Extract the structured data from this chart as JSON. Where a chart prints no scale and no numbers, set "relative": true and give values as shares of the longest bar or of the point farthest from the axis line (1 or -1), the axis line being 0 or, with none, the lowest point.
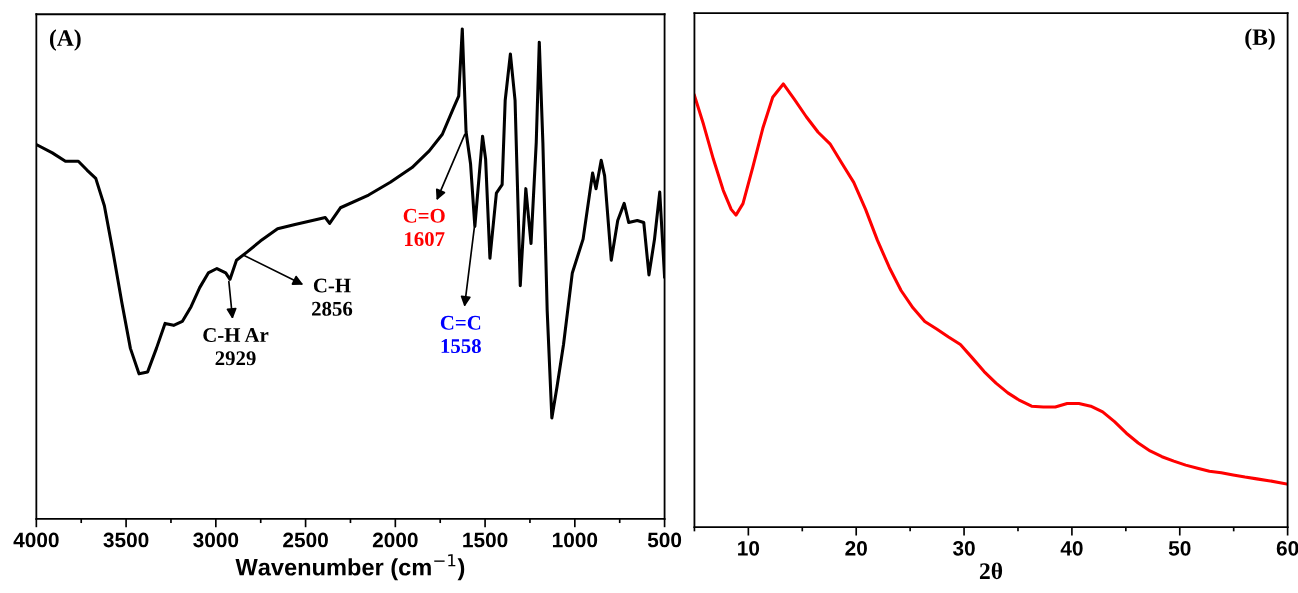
{
  "chart_data": [
    {
      "type": "line",
      "title": "(A)",
      "xlabel": "Wavenumber (cm$^{−1}$)",
      "relative": true,
      "tick_labels": "x",
      "xlim": [
        4000,
        500
      ],
      "xticks": [
        4000,
        {
          "value": 3750,
          "label": null
        },
        3500,
        {
          "value": 3250,
          "label": null
        },
        3000,
        {
          "value": 2750,
          "label": null
        },
        2500,
        {
          "value": 2250,
          "label": null
        },
        2000,
        {
          "value": 1750,
          "label": null
        },
        1500,
        {
          "value": 1250,
          "label": null
        },
        1000,
        {
          "value": 750,
          "label": null
        },
        500
      ],
      "series": [
        {
          "color": "#000000",
          "x": [
            4000,
            3911,
            3838,
            3766,
            3718,
            3669,
            3621,
            3573,
            3524,
            3476,
            3428,
            3380,
            3331,
            3283,
            3235,
            3187,
            3138,
            3090,
            3042,
            2994,
            2945,
            2921,
            2885,
            2825,
            2752,
            2656,
            2559,
            2462,
            2390,
            2366,
            2306,
            2149,
            2028,
            1907,
            1811,
            1738,
            1678,
            1647,
            1627,
            1606,
            1581,
            1557,
            1533,
            1514,
            1497,
            1473,
            1437,
            1405,
            1388,
            1359,
            1333,
            1304,
            1273,
            1244,
            1215,
            1198,
            1178,
            1154,
            1128,
            1099,
            1063,
            1014,
            954,
            901,
            882,
            853,
            834,
            797,
            761,
            725,
            700,
            652,
            616,
            587,
            556,
            527,
            500
          ],
          "values": [
            0.764,
            0.747,
            0.73,
            0.73,
            0.712,
            0.695,
            0.639,
            0.545,
            0.442,
            0.348,
            0.296,
            0.3,
            0.348,
            0.399,
            0.395,
            0.403,
            0.433,
            0.472,
            0.502,
            0.511,
            0.502,
            0.489,
            0.528,
            0.545,
            0.567,
            0.592,
            0.601,
            0.609,
            0.615,
            0.603,
            0.635,
            0.661,
            0.687,
            0.717,
            0.751,
            0.785,
            0.837,
            0.863,
            1.0,
            0.79,
            0.725,
            0.597,
            0.7,
            0.781,
            0.734,
            0.532,
            0.665,
            0.682,
            0.854,
            0.949,
            0.854,
            0.476,
            0.674,
            0.562,
            0.768,
            0.973,
            0.768,
            0.425,
            0.206,
            0.27,
            0.356,
            0.502,
            0.571,
            0.706,
            0.674,
            0.732,
            0.7,
            0.528,
            0.609,
            0.644,
            0.605,
            0.609,
            0.605,
            0.498,
            0.571,
            0.667,
            0.494
          ]
        }
      ],
      "annotations": [
        {
          "text": "C-H Ar\n2929",
          "x": 2929,
          "y": 0.49
        },
        {
          "text": "C-H\n2856",
          "x": 2856,
          "y": 0.54
        },
        {
          "text": "C=O\n1607",
          "x": 1607,
          "y": 0.79
        },
        {
          "text": "C=C\n1558",
          "x": 1558,
          "y": 0.6
        }
      ]
    },
    {
      "type": "line",
      "title": "(B)",
      "xlabel": "2θ",
      "relative": true,
      "tick_labels": "x",
      "xlim": [
        5,
        60
      ],
      "xticks": [
        {
          "value": 5,
          "label": null
        },
        10,
        {
          "value": 15,
          "label": null
        },
        20,
        {
          "value": 25,
          "label": null
        },
        30,
        {
          "value": 35,
          "label": null
        },
        40,
        {
          "value": 45,
          "label": null
        },
        50,
        {
          "value": 55,
          "label": null
        },
        60
      ],
      "series": [
        {
          "color": "#ff0000",
          "x": [
            5.0,
            5.84,
            6.76,
            7.67,
            8.41,
            8.85,
            9.5,
            10.42,
            11.34,
            12.26,
            13.24,
            14.27,
            15.37,
            16.47,
            17.57,
            18.67,
            19.77,
            20.87,
            21.97,
            23.07,
            24.16,
            25.26,
            26.36,
            27.46,
            28.56,
            29.66,
            30.76,
            31.86,
            32.96,
            34.06,
            35.16,
            36.26,
            37.36,
            38.46,
            39.56,
            40.65,
            41.75,
            42.85,
            43.95,
            45.05,
            46.15,
            47.25,
            48.35,
            49.45,
            50.55,
            51.65,
            52.75,
            53.85,
            54.95,
            56.05,
            57.14,
            58.24,
            60.0
          ],
          "values": [
            0.974,
            0.909,
            0.83,
            0.76,
            0.717,
            0.704,
            0.73,
            0.813,
            0.9,
            0.97,
            1.0,
            0.965,
            0.926,
            0.891,
            0.865,
            0.821,
            0.778,
            0.717,
            0.647,
            0.586,
            0.534,
            0.495,
            0.464,
            0.447,
            0.429,
            0.412,
            0.382,
            0.351,
            0.325,
            0.303,
            0.286,
            0.273,
            0.271,
            0.271,
            0.279,
            0.279,
            0.273,
            0.26,
            0.238,
            0.212,
            0.19,
            0.172,
            0.159,
            0.149,
            0.14,
            0.133,
            0.126,
            0.123,
            0.118,
            0.113,
            0.109,
            0.105,
            0.097
          ]
        }
      ]
    }
  ]
}
